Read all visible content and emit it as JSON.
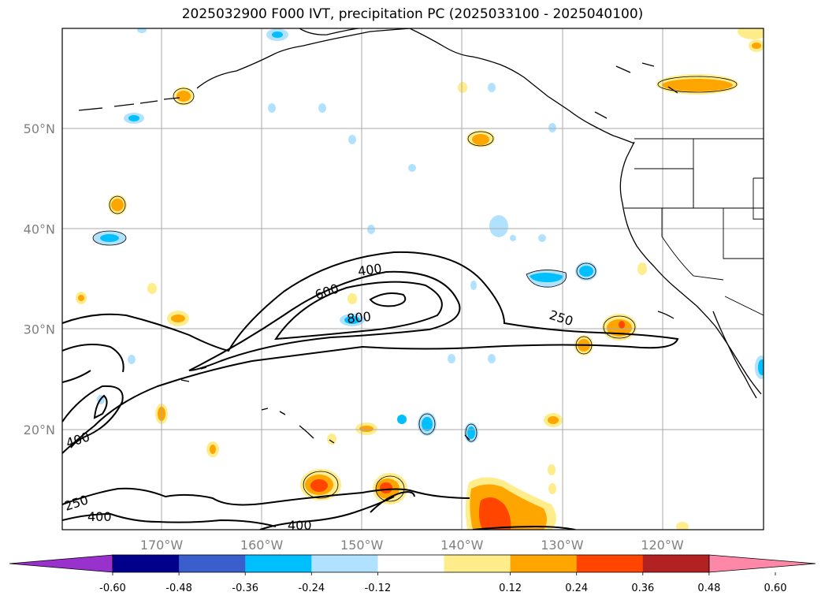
{
  "title": "2025032900 F000 IVT, precipitation PC (2025033100 - 2025040100)",
  "lat_labels": [
    {
      "lat": 50,
      "text": "50°N"
    },
    {
      "lat": 40,
      "text": "40°N"
    },
    {
      "lat": 30,
      "text": "30°N"
    },
    {
      "lat": 20,
      "text": "20°N"
    }
  ],
  "lon_labels": [
    {
      "lon": -170,
      "text": "170°W"
    },
    {
      "lon": -160,
      "text": "160°W"
    },
    {
      "lon": -150,
      "text": "150°W"
    },
    {
      "lon": -140,
      "text": "140°W"
    },
    {
      "lon": -130,
      "text": "130°W"
    },
    {
      "lon": -120,
      "text": "120°W"
    }
  ],
  "contour_labels": [
    "400",
    "600",
    "800",
    "250",
    "400",
    "250",
    "400",
    "400"
  ],
  "colorbar": {
    "colors": [
      "#9932cc",
      "#00008b",
      "#3a5fcd",
      "#00bfff",
      "#b0e2ff",
      "#ffffff",
      "#ffec8b",
      "#ffa500",
      "#ff4500",
      "#b22222",
      "#ff88a8"
    ],
    "labels": [
      "-0.60",
      "-0.48",
      "-0.36",
      "-0.24",
      "-0.12",
      "0.12",
      "0.24",
      "0.36",
      "0.48",
      "0.60"
    ]
  }
}
